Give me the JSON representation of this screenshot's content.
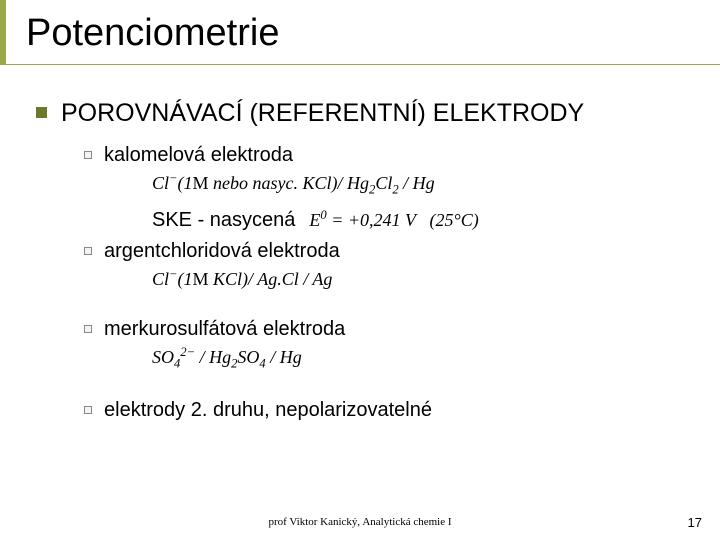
{
  "slide": {
    "title": "Potenciometrie",
    "accent_color": "#9aa84a",
    "accent_dark": "#6b7a2a",
    "heading": "POROVNÁVACÍ (REFERENTNÍ) ELEKTRODY",
    "items": [
      {
        "label": "kalomelová elektroda",
        "formula_html": "Cl<sup>&minus;</sup>(1<span class='up'>M</span> nebo nasyc. KCl)/ Hg<sub>2</sub>Cl<sub>2</sub> / Hg",
        "ske_label": "SKE - nasycená",
        "ske_formula_html": "E<sup>0</sup> = +0,241&nbsp;V&nbsp;&nbsp;&nbsp;(25°C)"
      },
      {
        "label": "argentchloridová elektroda",
        "formula_html": "Cl<sup>&minus;</sup>(1<span class='up'>M</span> KCl)/ Ag.Cl / Ag"
      },
      {
        "label": "merkurosulfátová elektroda",
        "formula_html": "SO<sub>4</sub><sup>2&minus;</sup> / Hg<sub>2</sub>SO<sub>4</sub> / Hg"
      },
      {
        "label": "elektrody 2. druhu, nepolarizovatelné"
      }
    ],
    "footer_center": "prof Viktor Kanický, Analytická chemie I",
    "page_number": "17"
  },
  "style": {
    "title_fontsize": 38,
    "l1_fontsize": 25,
    "l2_fontsize": 20,
    "formula_fontsize": 18,
    "footer_fontsize": 11,
    "background_color": "#ffffff",
    "text_color": "#000000"
  }
}
